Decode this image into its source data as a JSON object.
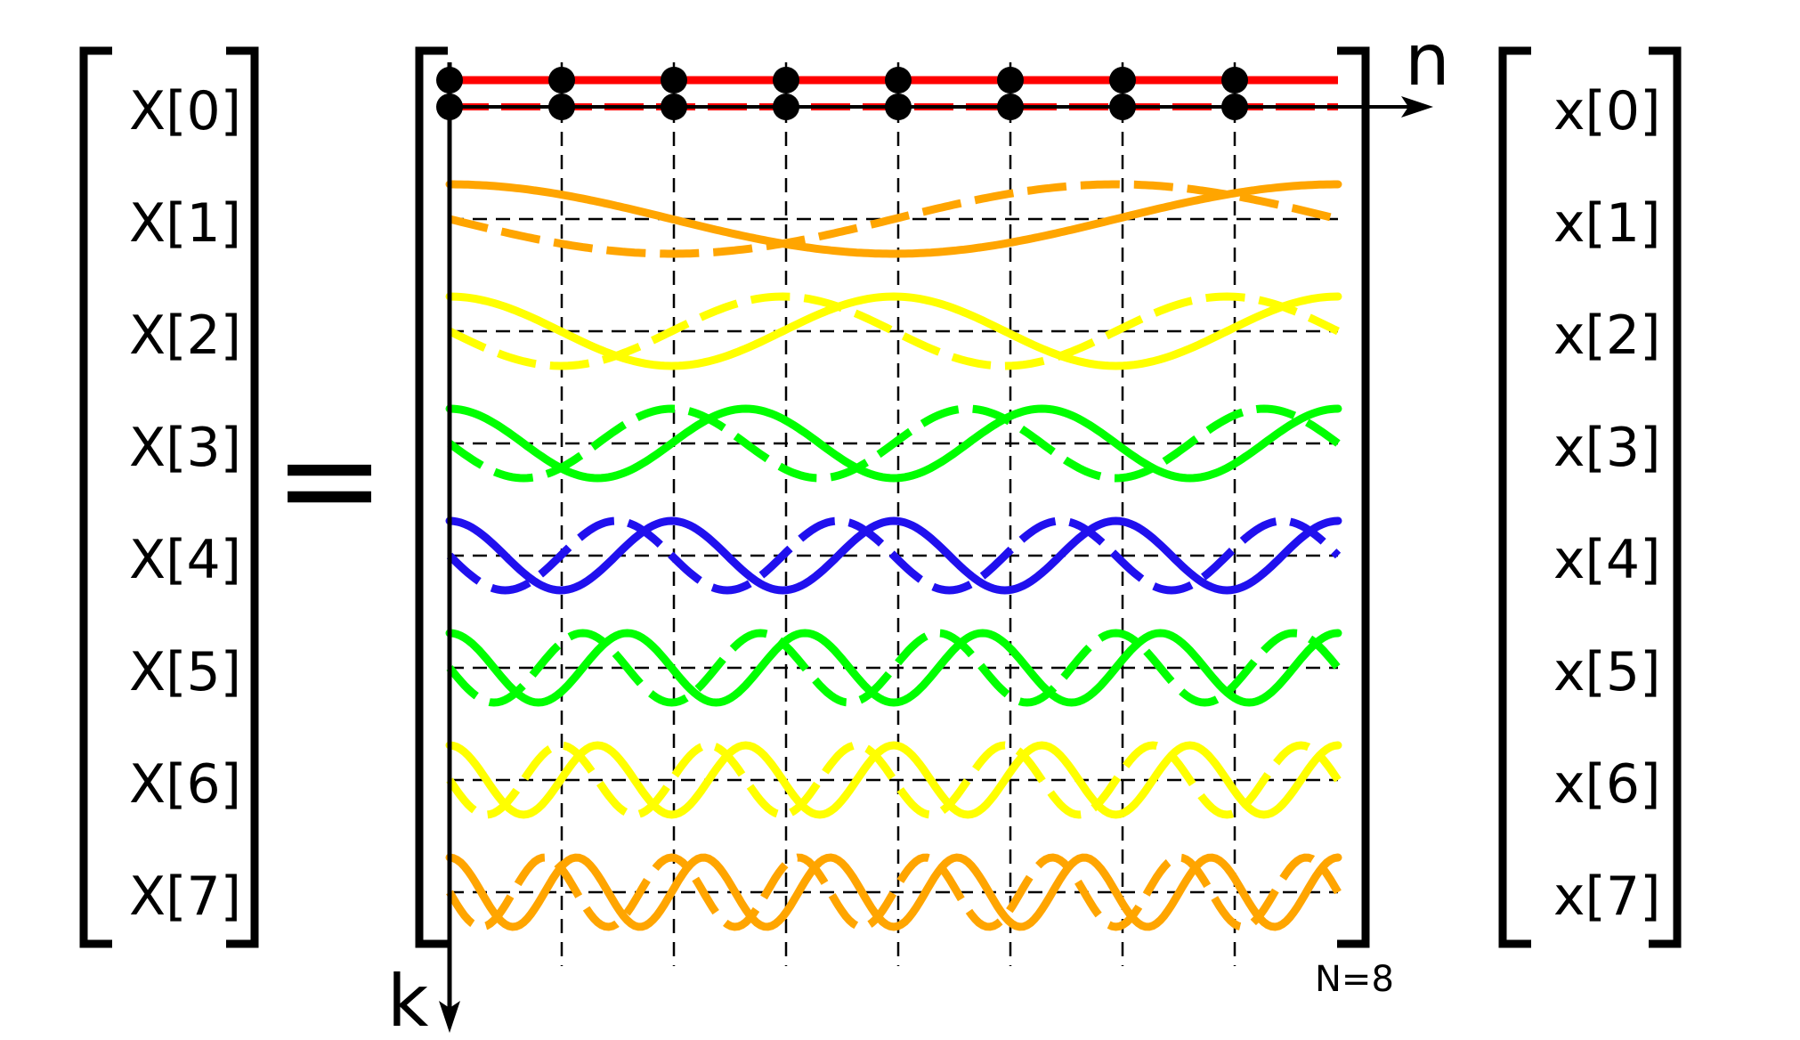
{
  "output_labels": [
    "X[0]",
    "X[1]",
    "X[2]",
    "X[3]",
    "X[4]",
    "X[5]",
    "X[6]",
    "X[7]"
  ],
  "input_labels": [
    "x[0]",
    "x[1]",
    "x[2]",
    "x[3]",
    "x[4]",
    "x[5]",
    "x[6]",
    "x[7]"
  ],
  "equals_sign": "=",
  "axis_n_label": "n",
  "axis_k_label": "k",
  "size_note": "N=8",
  "rows": [
    {
      "k": 0,
      "color": "#ff0000"
    },
    {
      "k": 1,
      "color": "#ffa500"
    },
    {
      "k": 2,
      "color": "#ffff00"
    },
    {
      "k": 3,
      "color": "#00ff00"
    },
    {
      "k": 4,
      "color": "#2010ee"
    },
    {
      "k": 5,
      "color": "#00ff00"
    },
    {
      "k": 6,
      "color": "#ffff00"
    },
    {
      "k": 7,
      "color": "#ffa500"
    }
  ],
  "line_styles": {
    "real_part": "solid",
    "imaginary_part": "dashed"
  }
}
